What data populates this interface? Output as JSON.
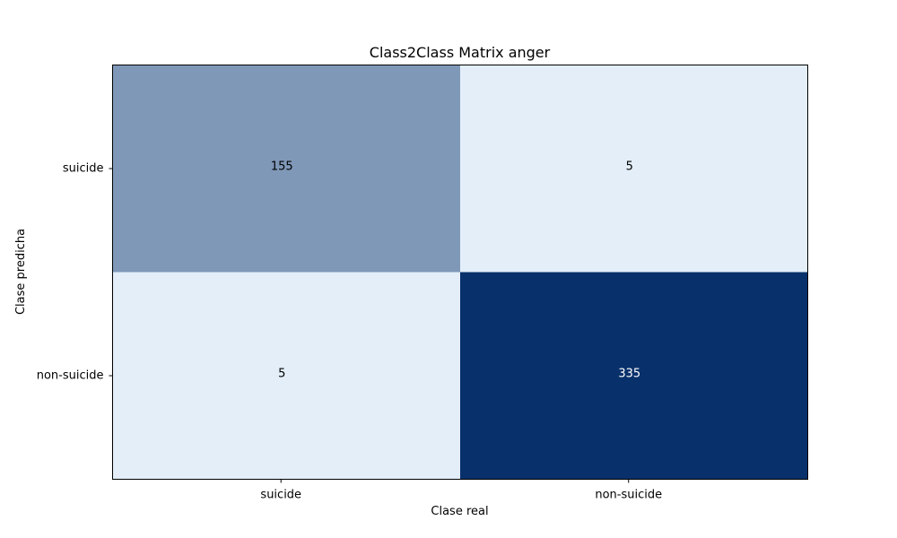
{
  "chart_data": {
    "type": "heatmap",
    "title": "Class2Class Matrix anger",
    "xlabel": "Clase real",
    "ylabel": "Clase predicha",
    "x_categories": [
      "suicide",
      "non-suicide"
    ],
    "y_categories": [
      "suicide",
      "non-suicide"
    ],
    "values": [
      [
        155,
        5
      ],
      [
        5,
        335
      ]
    ],
    "colormap": "Blues",
    "colors": {
      "high": "#08306b",
      "low": "#e3eef8",
      "text_on_high": "#ffffff",
      "text_on_low": "#000000"
    }
  }
}
